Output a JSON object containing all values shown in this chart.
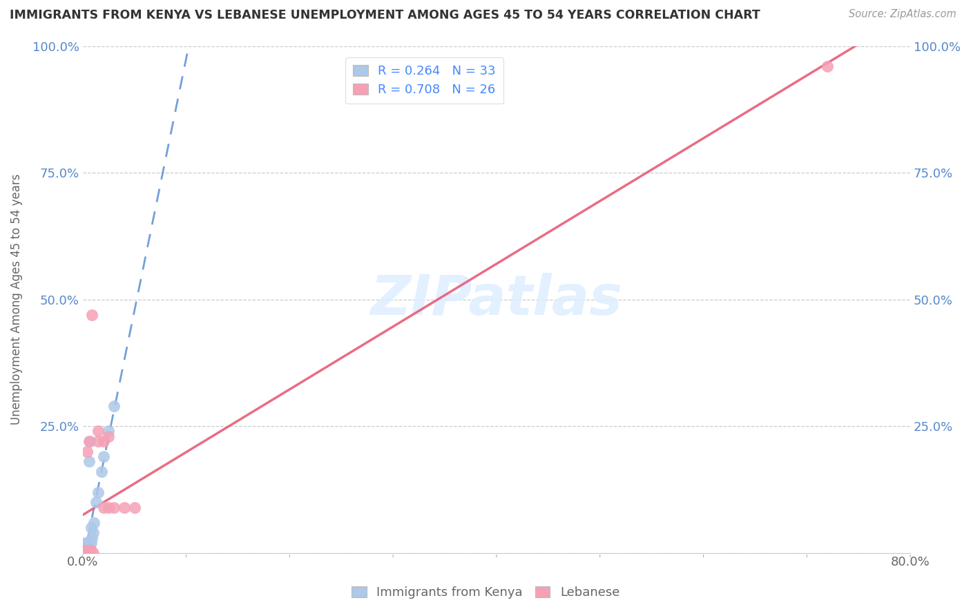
{
  "title": "IMMIGRANTS FROM KENYA VS LEBANESE UNEMPLOYMENT AMONG AGES 45 TO 54 YEARS CORRELATION CHART",
  "source": "Source: ZipAtlas.com",
  "ylabel": "Unemployment Among Ages 45 to 54 years",
  "xlim": [
    0.0,
    0.8
  ],
  "ylim": [
    0.0,
    1.0
  ],
  "xtick_positions": [
    0.0,
    0.1,
    0.2,
    0.3,
    0.4,
    0.5,
    0.6,
    0.7,
    0.8
  ],
  "xticklabels": [
    "0.0%",
    "",
    "",
    "",
    "",
    "",
    "",
    "",
    "80.0%"
  ],
  "ytick_positions": [
    0.0,
    0.25,
    0.5,
    0.75,
    1.0
  ],
  "yticklabels_left": [
    "",
    "25.0%",
    "50.0%",
    "75.0%",
    "100.0%"
  ],
  "yticklabels_right": [
    "",
    "25.0%",
    "50.0%",
    "75.0%",
    "100.0%"
  ],
  "kenya_R": 0.264,
  "kenya_N": 33,
  "lebanese_R": 0.708,
  "lebanese_N": 26,
  "kenya_color": "#adc8e8",
  "lebanese_color": "#f5a0b5",
  "kenya_line_color": "#5b8fd4",
  "lebanese_line_color": "#e8607a",
  "background_color": "#ffffff",
  "watermark_text": "ZIPatlas",
  "watermark_color": "#ddeeff",
  "legend_label_color": "#4488ff",
  "bottom_legend_color": "#666666",
  "kenya_scatter_x": [
    0.001,
    0.001,
    0.001,
    0.002,
    0.002,
    0.002,
    0.002,
    0.003,
    0.003,
    0.003,
    0.003,
    0.004,
    0.004,
    0.004,
    0.005,
    0.005,
    0.005,
    0.006,
    0.006,
    0.006,
    0.007,
    0.007,
    0.008,
    0.008,
    0.009,
    0.01,
    0.011,
    0.013,
    0.015,
    0.018,
    0.02,
    0.025,
    0.03
  ],
  "kenya_scatter_y": [
    0.0,
    0.0,
    0.005,
    0.0,
    0.0,
    0.005,
    0.01,
    0.0,
    0.005,
    0.01,
    0.02,
    0.0,
    0.01,
    0.02,
    0.0,
    0.01,
    0.015,
    0.0,
    0.01,
    0.18,
    0.01,
    0.22,
    0.02,
    0.05,
    0.03,
    0.04,
    0.06,
    0.1,
    0.12,
    0.16,
    0.19,
    0.24,
    0.29
  ],
  "lebanese_scatter_x": [
    0.001,
    0.001,
    0.002,
    0.002,
    0.003,
    0.003,
    0.004,
    0.004,
    0.005,
    0.005,
    0.006,
    0.006,
    0.007,
    0.008,
    0.009,
    0.01,
    0.015,
    0.015,
    0.02,
    0.02,
    0.025,
    0.025,
    0.03,
    0.04,
    0.05,
    0.72
  ],
  "lebanese_scatter_y": [
    0.0,
    0.0,
    0.0,
    0.005,
    0.0,
    0.005,
    0.0,
    0.2,
    0.0,
    0.005,
    0.0,
    0.22,
    0.0,
    0.005,
    0.47,
    0.0,
    0.22,
    0.24,
    0.09,
    0.22,
    0.09,
    0.23,
    0.09,
    0.09,
    0.09,
    0.96
  ],
  "trend_x_start": 0.0,
  "trend_x_end": 0.8
}
